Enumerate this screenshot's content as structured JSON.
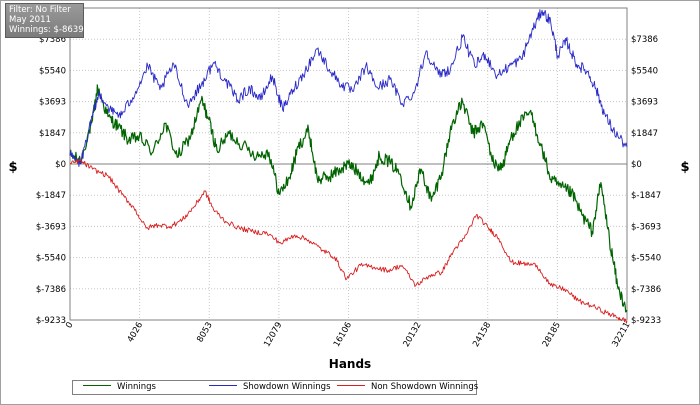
{
  "info": {
    "filter": "Filter: No Filter",
    "period": "May 2011",
    "winnings": "Winnings: $-8639.50"
  },
  "colors": {
    "winnings": "#006400",
    "showdown": "#2828c8",
    "non_showdown": "#d82020",
    "grid": "#c8c8c8",
    "zero_line": "#808080"
  },
  "chart_data": {
    "type": "line",
    "xlabel": "Hands",
    "ylabel": "$",
    "xlim": [
      0,
      32211
    ],
    "ylim": [
      -9233,
      9233
    ],
    "x_ticks": [
      0,
      4026,
      8053,
      12079,
      16106,
      20132,
      24158,
      28185,
      32211
    ],
    "x_tick_labels": [
      "0",
      "4026",
      "8053",
      "12079",
      "16106",
      "20132",
      "24158",
      "28185",
      "32211"
    ],
    "y_ticks": [
      7386,
      5540,
      3693,
      1847,
      0,
      -1847,
      -3693,
      -5540,
      -7386,
      -9233
    ],
    "y_tick_labels": [
      "$7386",
      "$5540",
      "$3693",
      "$1847",
      "$0",
      "$-1847",
      "$-3693",
      "$-5540",
      "$-7386",
      "$-9233"
    ],
    "grid": true,
    "legend_position": "bottom-left",
    "series": [
      {
        "name": "Winnings",
        "x": [
          0,
          600,
          1300,
          1600,
          2200,
          2800,
          3400,
          4000,
          4800,
          5500,
          6200,
          7000,
          7600,
          8000,
          8500,
          9200,
          10000,
          10800,
          11500,
          12100,
          12700,
          13200,
          13800,
          14300,
          14900,
          15500,
          16100,
          16700,
          17300,
          17900,
          18500,
          19100,
          19700,
          20300,
          20900,
          21500,
          22100,
          22700,
          23300,
          23900,
          24500,
          25000,
          25500,
          26000,
          26600,
          27200,
          27800,
          28400,
          29000,
          29600,
          30200,
          30700,
          31200,
          31700,
          32211
        ],
        "y": [
          500,
          200,
          2600,
          4500,
          2800,
          2200,
          1400,
          1600,
          700,
          2400,
          400,
          1700,
          3800,
          2700,
          800,
          1800,
          1100,
          500,
          700,
          -1800,
          -800,
          1000,
          2000,
          -900,
          -800,
          -400,
          0,
          -500,
          -1200,
          500,
          100,
          -600,
          -2500,
          -300,
          -2200,
          -500,
          2400,
          3700,
          1800,
          2400,
          0,
          -200,
          1600,
          2400,
          3100,
          1200,
          -900,
          -1400,
          -1700,
          -3000,
          -4000,
          -1100,
          -4500,
          -7400,
          -8640
        ]
      },
      {
        "name": "Showdown Winnings",
        "x": [
          0,
          600,
          1300,
          1700,
          2400,
          3000,
          3800,
          4500,
          5200,
          6000,
          6800,
          7600,
          8300,
          9000,
          9700,
          10400,
          11000,
          11700,
          12300,
          12900,
          13600,
          14300,
          15000,
          15700,
          16400,
          17100,
          17800,
          18500,
          19200,
          19900,
          20600,
          21300,
          22000,
          22700,
          23400,
          24000,
          24700,
          25400,
          26100,
          26700,
          27300,
          27800,
          28200,
          28700,
          29300,
          29900,
          30400,
          30900,
          31400,
          32211
        ],
        "y": [
          500,
          0,
          2800,
          4200,
          3100,
          2900,
          4300,
          5800,
          4400,
          5900,
          3500,
          4700,
          6000,
          4900,
          3800,
          4500,
          3800,
          5200,
          3200,
          4400,
          5500,
          6800,
          5600,
          4700,
          4300,
          5800,
          4500,
          5000,
          3600,
          4200,
          6700,
          5300,
          5600,
          7500,
          5800,
          6500,
          5200,
          5800,
          6200,
          7800,
          9100,
          8400,
          6400,
          7300,
          5900,
          5500,
          4500,
          3000,
          2000,
          1000
        ]
      },
      {
        "name": "Non Showdown Winnings",
        "x": [
          0,
          600,
          1300,
          2200,
          3000,
          3700,
          4400,
          5100,
          5800,
          6500,
          7200,
          7800,
          8300,
          9000,
          9800,
          10600,
          11400,
          12200,
          13000,
          13800,
          14600,
          15300,
          16000,
          16800,
          17600,
          18400,
          19200,
          20000,
          20800,
          21500,
          22200,
          22800,
          23500,
          24200,
          24800,
          25500,
          26200,
          27000,
          27800,
          28600,
          29400,
          30200,
          31000,
          31700,
          32211
        ],
        "y": [
          0,
          200,
          -300,
          -700,
          -1800,
          -2600,
          -3800,
          -3600,
          -3700,
          -3300,
          -2500,
          -1600,
          -2700,
          -3400,
          -3800,
          -4000,
          -4100,
          -4700,
          -4200,
          -4500,
          -5100,
          -5500,
          -6800,
          -6000,
          -6100,
          -6300,
          -6000,
          -7200,
          -6600,
          -6400,
          -5100,
          -4400,
          -3000,
          -3800,
          -4400,
          -5800,
          -5900,
          -6000,
          -7200,
          -7400,
          -8100,
          -8400,
          -8800,
          -9100,
          -9300
        ]
      }
    ]
  }
}
